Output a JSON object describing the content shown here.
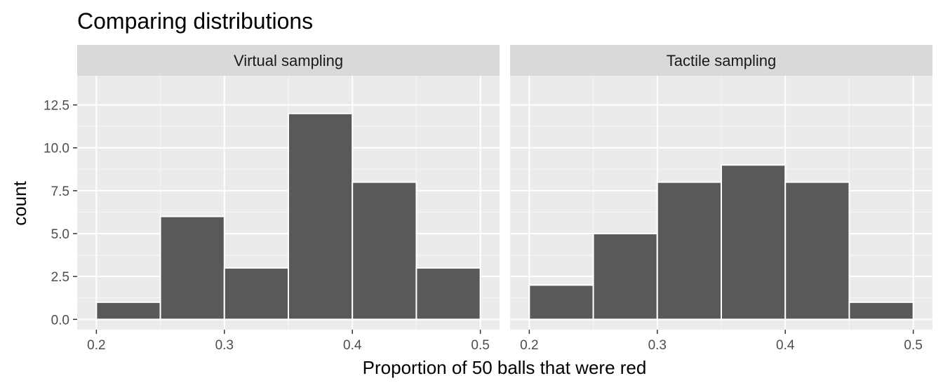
{
  "chart_data": {
    "type": "bar",
    "title": "Comparing distributions",
    "xlabel": "Proportion of 50 balls that were red",
    "ylabel": "count",
    "xlim": [
      0.185,
      0.515
    ],
    "ylim": [
      -0.6,
      14.2
    ],
    "bin_width": 0.05,
    "bin_edges": [
      0.2,
      0.25,
      0.3,
      0.35,
      0.4,
      0.45,
      0.5
    ],
    "x_ticks": [
      0.2,
      0.3,
      0.4,
      0.5
    ],
    "x_tick_labels": [
      "0.2",
      "0.3",
      "0.4",
      "0.5"
    ],
    "y_ticks": [
      0,
      2.5,
      5,
      7.5,
      10,
      12.5
    ],
    "y_tick_labels": [
      "0.0",
      "2.5",
      "5.0",
      "7.5",
      "10.0",
      "12.5"
    ],
    "grid": true,
    "facets": [
      {
        "label": "Virtual sampling",
        "values": [
          1,
          6,
          3,
          12,
          8,
          3
        ]
      },
      {
        "label": "Tactile sampling",
        "values": [
          2,
          5,
          8,
          9,
          8,
          1
        ]
      }
    ],
    "colors": {
      "bar_fill": "#595959",
      "bar_outline": "#ffffff",
      "panel_bg": "#ebebeb",
      "strip_bg": "#d9d9d9",
      "grid_major": "#ffffff",
      "grid_minor": "#f5f5f5",
      "tick_text": "#4d4d4d"
    }
  }
}
